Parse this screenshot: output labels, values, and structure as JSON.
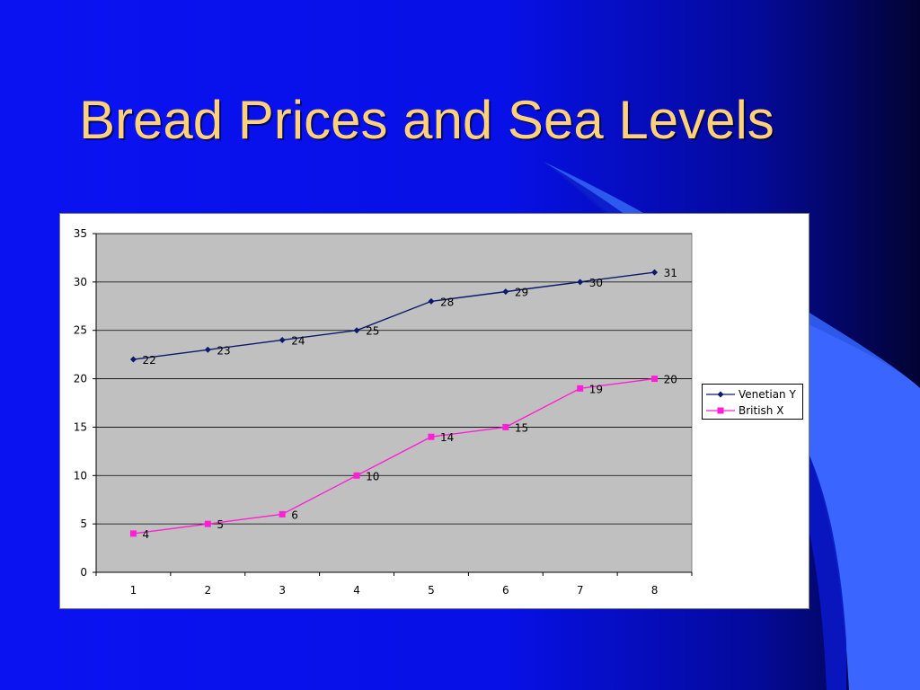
{
  "slide": {
    "title": "Bread Prices and Sea Levels"
  },
  "colors": {
    "background": "#0710e6",
    "title": "#ffd27a",
    "plot_area": "#c0c0c0",
    "venetian": "#0b1a6e",
    "british": "#ff1fd6"
  },
  "chart_data": {
    "type": "line",
    "x": [
      1,
      2,
      3,
      4,
      5,
      6,
      7,
      8
    ],
    "categories": [
      "1",
      "2",
      "3",
      "4",
      "5",
      "6",
      "7",
      "8"
    ],
    "series": [
      {
        "name": "Venetian Y",
        "values": [
          22,
          23,
          24,
          25,
          28,
          29,
          30,
          31
        ],
        "color": "#0b1a6e",
        "marker": "diamond"
      },
      {
        "name": "British X",
        "values": [
          4,
          5,
          6,
          10,
          14,
          15,
          19,
          20
        ],
        "color": "#ff1fd6",
        "marker": "square"
      }
    ],
    "ylim": [
      0,
      35
    ],
    "yticks": [
      0,
      5,
      10,
      15,
      20,
      25,
      30,
      35
    ],
    "grid": true,
    "legend": "right",
    "data_labels": true,
    "title": "",
    "xlabel": "",
    "ylabel": ""
  }
}
